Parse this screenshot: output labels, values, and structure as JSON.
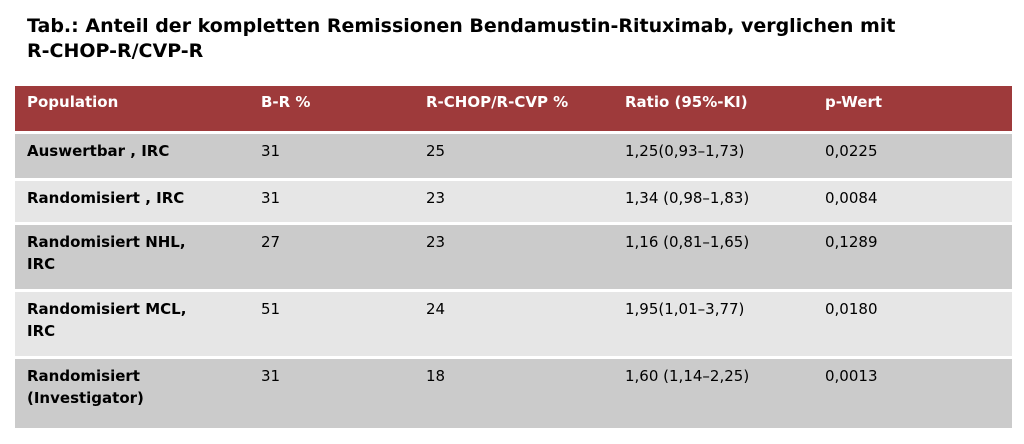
{
  "title_line1": "Tab.: Anteil der kompletten Remissionen Bendamustin-Rituximab, verglichen mit",
  "title_line2": "R-CHOP-R/CVP-R",
  "headers": [
    "Population",
    "B-R %",
    "R-CHOP/R-CVP %",
    "Ratio (95%-KI)",
    "p-Wert"
  ],
  "rows": [
    {
      "population": [
        "Auswertbar , IRC"
      ],
      "br": "31",
      "rchop": "25",
      "ratio": "1,25(0,93–1,73)",
      "p": "0,0225"
    },
    {
      "population": [
        "Randomisiert , IRC"
      ],
      "br": "31",
      "rchop": "23",
      "ratio": "1,34 (0,98–1,83)",
      "p": "0,0084"
    },
    {
      "population": [
        "Randomisiert NHL,",
        "IRC"
      ],
      "br": "27",
      "rchop": "23",
      "ratio": "1,16 (0,81–1,65)",
      "p": "0,1289"
    },
    {
      "population": [
        "Randomisiert MCL,",
        "IRC"
      ],
      "br": "51",
      "rchop": "24",
      "ratio": "1,95(1,01–3,77)",
      "p": "0,0180"
    },
    {
      "population": [
        "Randomisiert",
        "(Investigator)"
      ],
      "br": "31",
      "rchop": "18",
      "ratio": "1,60 (1,14–2,25)",
      "p": "0,0013"
    }
  ],
  "colors": {
    "header_bg": "#9e3a3b",
    "row_dark": "#cbcbcb",
    "row_light": "#e6e6e6"
  }
}
